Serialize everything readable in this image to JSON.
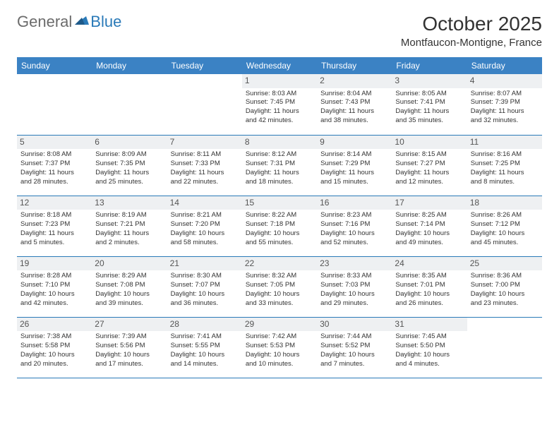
{
  "logo": {
    "part1": "General",
    "part2": "Blue"
  },
  "title": "October 2025",
  "location": "Montfaucon-Montigne, France",
  "colors": {
    "header_bg": "#3b82c4",
    "accent": "#2a7ab8",
    "day_number_bg": "#eef0f2"
  },
  "weekdays": [
    "Sunday",
    "Monday",
    "Tuesday",
    "Wednesday",
    "Thursday",
    "Friday",
    "Saturday"
  ],
  "weeks": [
    [
      {
        "empty": true
      },
      {
        "empty": true
      },
      {
        "empty": true
      },
      {
        "day": "1",
        "sunrise": "Sunrise: 8:03 AM",
        "sunset": "Sunset: 7:45 PM",
        "daylight1": "Daylight: 11 hours",
        "daylight2": "and 42 minutes."
      },
      {
        "day": "2",
        "sunrise": "Sunrise: 8:04 AM",
        "sunset": "Sunset: 7:43 PM",
        "daylight1": "Daylight: 11 hours",
        "daylight2": "and 38 minutes."
      },
      {
        "day": "3",
        "sunrise": "Sunrise: 8:05 AM",
        "sunset": "Sunset: 7:41 PM",
        "daylight1": "Daylight: 11 hours",
        "daylight2": "and 35 minutes."
      },
      {
        "day": "4",
        "sunrise": "Sunrise: 8:07 AM",
        "sunset": "Sunset: 7:39 PM",
        "daylight1": "Daylight: 11 hours",
        "daylight2": "and 32 minutes."
      }
    ],
    [
      {
        "day": "5",
        "sunrise": "Sunrise: 8:08 AM",
        "sunset": "Sunset: 7:37 PM",
        "daylight1": "Daylight: 11 hours",
        "daylight2": "and 28 minutes."
      },
      {
        "day": "6",
        "sunrise": "Sunrise: 8:09 AM",
        "sunset": "Sunset: 7:35 PM",
        "daylight1": "Daylight: 11 hours",
        "daylight2": "and 25 minutes."
      },
      {
        "day": "7",
        "sunrise": "Sunrise: 8:11 AM",
        "sunset": "Sunset: 7:33 PM",
        "daylight1": "Daylight: 11 hours",
        "daylight2": "and 22 minutes."
      },
      {
        "day": "8",
        "sunrise": "Sunrise: 8:12 AM",
        "sunset": "Sunset: 7:31 PM",
        "daylight1": "Daylight: 11 hours",
        "daylight2": "and 18 minutes."
      },
      {
        "day": "9",
        "sunrise": "Sunrise: 8:14 AM",
        "sunset": "Sunset: 7:29 PM",
        "daylight1": "Daylight: 11 hours",
        "daylight2": "and 15 minutes."
      },
      {
        "day": "10",
        "sunrise": "Sunrise: 8:15 AM",
        "sunset": "Sunset: 7:27 PM",
        "daylight1": "Daylight: 11 hours",
        "daylight2": "and 12 minutes."
      },
      {
        "day": "11",
        "sunrise": "Sunrise: 8:16 AM",
        "sunset": "Sunset: 7:25 PM",
        "daylight1": "Daylight: 11 hours",
        "daylight2": "and 8 minutes."
      }
    ],
    [
      {
        "day": "12",
        "sunrise": "Sunrise: 8:18 AM",
        "sunset": "Sunset: 7:23 PM",
        "daylight1": "Daylight: 11 hours",
        "daylight2": "and 5 minutes."
      },
      {
        "day": "13",
        "sunrise": "Sunrise: 8:19 AM",
        "sunset": "Sunset: 7:21 PM",
        "daylight1": "Daylight: 11 hours",
        "daylight2": "and 2 minutes."
      },
      {
        "day": "14",
        "sunrise": "Sunrise: 8:21 AM",
        "sunset": "Sunset: 7:20 PM",
        "daylight1": "Daylight: 10 hours",
        "daylight2": "and 58 minutes."
      },
      {
        "day": "15",
        "sunrise": "Sunrise: 8:22 AM",
        "sunset": "Sunset: 7:18 PM",
        "daylight1": "Daylight: 10 hours",
        "daylight2": "and 55 minutes."
      },
      {
        "day": "16",
        "sunrise": "Sunrise: 8:23 AM",
        "sunset": "Sunset: 7:16 PM",
        "daylight1": "Daylight: 10 hours",
        "daylight2": "and 52 minutes."
      },
      {
        "day": "17",
        "sunrise": "Sunrise: 8:25 AM",
        "sunset": "Sunset: 7:14 PM",
        "daylight1": "Daylight: 10 hours",
        "daylight2": "and 49 minutes."
      },
      {
        "day": "18",
        "sunrise": "Sunrise: 8:26 AM",
        "sunset": "Sunset: 7:12 PM",
        "daylight1": "Daylight: 10 hours",
        "daylight2": "and 45 minutes."
      }
    ],
    [
      {
        "day": "19",
        "sunrise": "Sunrise: 8:28 AM",
        "sunset": "Sunset: 7:10 PM",
        "daylight1": "Daylight: 10 hours",
        "daylight2": "and 42 minutes."
      },
      {
        "day": "20",
        "sunrise": "Sunrise: 8:29 AM",
        "sunset": "Sunset: 7:08 PM",
        "daylight1": "Daylight: 10 hours",
        "daylight2": "and 39 minutes."
      },
      {
        "day": "21",
        "sunrise": "Sunrise: 8:30 AM",
        "sunset": "Sunset: 7:07 PM",
        "daylight1": "Daylight: 10 hours",
        "daylight2": "and 36 minutes."
      },
      {
        "day": "22",
        "sunrise": "Sunrise: 8:32 AM",
        "sunset": "Sunset: 7:05 PM",
        "daylight1": "Daylight: 10 hours",
        "daylight2": "and 33 minutes."
      },
      {
        "day": "23",
        "sunrise": "Sunrise: 8:33 AM",
        "sunset": "Sunset: 7:03 PM",
        "daylight1": "Daylight: 10 hours",
        "daylight2": "and 29 minutes."
      },
      {
        "day": "24",
        "sunrise": "Sunrise: 8:35 AM",
        "sunset": "Sunset: 7:01 PM",
        "daylight1": "Daylight: 10 hours",
        "daylight2": "and 26 minutes."
      },
      {
        "day": "25",
        "sunrise": "Sunrise: 8:36 AM",
        "sunset": "Sunset: 7:00 PM",
        "daylight1": "Daylight: 10 hours",
        "daylight2": "and 23 minutes."
      }
    ],
    [
      {
        "day": "26",
        "sunrise": "Sunrise: 7:38 AM",
        "sunset": "Sunset: 5:58 PM",
        "daylight1": "Daylight: 10 hours",
        "daylight2": "and 20 minutes."
      },
      {
        "day": "27",
        "sunrise": "Sunrise: 7:39 AM",
        "sunset": "Sunset: 5:56 PM",
        "daylight1": "Daylight: 10 hours",
        "daylight2": "and 17 minutes."
      },
      {
        "day": "28",
        "sunrise": "Sunrise: 7:41 AM",
        "sunset": "Sunset: 5:55 PM",
        "daylight1": "Daylight: 10 hours",
        "daylight2": "and 14 minutes."
      },
      {
        "day": "29",
        "sunrise": "Sunrise: 7:42 AM",
        "sunset": "Sunset: 5:53 PM",
        "daylight1": "Daylight: 10 hours",
        "daylight2": "and 10 minutes."
      },
      {
        "day": "30",
        "sunrise": "Sunrise: 7:44 AM",
        "sunset": "Sunset: 5:52 PM",
        "daylight1": "Daylight: 10 hours",
        "daylight2": "and 7 minutes."
      },
      {
        "day": "31",
        "sunrise": "Sunrise: 7:45 AM",
        "sunset": "Sunset: 5:50 PM",
        "daylight1": "Daylight: 10 hours",
        "daylight2": "and 4 minutes."
      },
      {
        "empty": true
      }
    ]
  ]
}
